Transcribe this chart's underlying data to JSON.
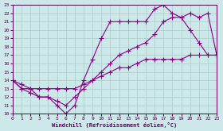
{
  "xlabel": "Windchill (Refroidissement éolien,°C)",
  "xlim": [
    0,
    23
  ],
  "ylim": [
    10,
    23
  ],
  "xticks": [
    0,
    1,
    2,
    3,
    4,
    5,
    6,
    7,
    8,
    9,
    10,
    11,
    12,
    13,
    14,
    15,
    16,
    17,
    18,
    19,
    20,
    21,
    22,
    23
  ],
  "yticks": [
    10,
    11,
    12,
    13,
    14,
    15,
    16,
    17,
    18,
    19,
    20,
    21,
    22,
    23
  ],
  "bg_color": "#cce8e8",
  "line_color": "#880088",
  "grid_color": "#aacccc",
  "line1_x": [
    0,
    1,
    2,
    3,
    4,
    5,
    6,
    7,
    8,
    9,
    10,
    11,
    12,
    13,
    14,
    15,
    16,
    17,
    18,
    19,
    20,
    21,
    22,
    23
  ],
  "line1_y": [
    14,
    13,
    13,
    12,
    12,
    11,
    10,
    11,
    14,
    16.5,
    19,
    21,
    21,
    21,
    21,
    21,
    22.5,
    23,
    22,
    21.5,
    20,
    18.5,
    17,
    17
  ],
  "line2_x": [
    0,
    1,
    2,
    3,
    4,
    5,
    6,
    7,
    8,
    9,
    10,
    11,
    12,
    13,
    14,
    15,
    16,
    17,
    18,
    19,
    20,
    21,
    22,
    23
  ],
  "line2_y": [
    14,
    13,
    12.5,
    12,
    12,
    11.5,
    11,
    12,
    13,
    14,
    15,
    16,
    17,
    17.5,
    18,
    18.5,
    19.5,
    21,
    21.5,
    21.5,
    22,
    21.5,
    22,
    17
  ],
  "line3_x": [
    0,
    1,
    2,
    3,
    4,
    5,
    6,
    7,
    8,
    9,
    10,
    11,
    12,
    13,
    14,
    15,
    16,
    17,
    18,
    19,
    20,
    21,
    22,
    23
  ],
  "line3_y": [
    14,
    13.5,
    13,
    13,
    13,
    13,
    13,
    13,
    13.5,
    14,
    14.5,
    15,
    15.5,
    15.5,
    16,
    16.5,
    16.5,
    16.5,
    16.5,
    16.5,
    17,
    17,
    17,
    17
  ]
}
